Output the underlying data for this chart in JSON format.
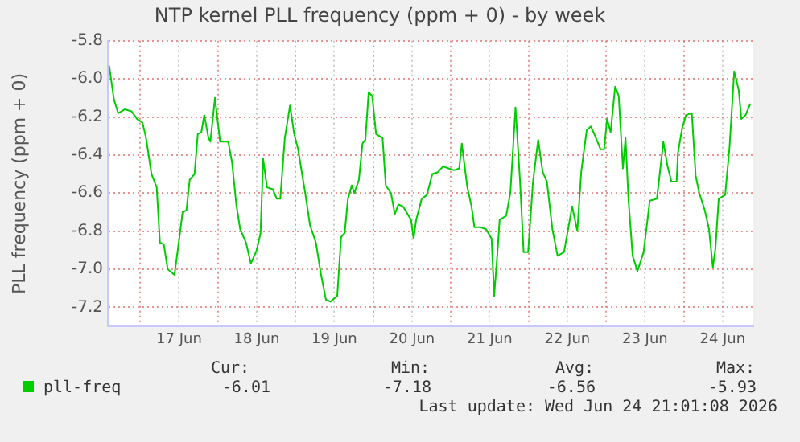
{
  "chart_data": {
    "type": "line",
    "title": "NTP kernel PLL frequency (ppm + 0) - by week",
    "ylabel": "PLL frequency (ppm + 0)",
    "x": [
      "2026-06-16T14:24",
      "2026-06-16T15:54",
      "2026-06-16T17:12",
      "2026-06-16T19:12",
      "2026-06-16T21:18",
      "2026-06-16T23:00",
      "2026-06-17T00:42",
      "2026-06-17T01:48",
      "2026-06-17T03:30",
      "2026-06-17T05:06",
      "2026-06-17T06:06",
      "2026-06-17T07:18",
      "2026-06-17T08:30",
      "2026-06-17T10:36",
      "2026-06-17T12:18",
      "2026-06-17T13:06",
      "2026-06-17T14:18",
      "2026-06-17T15:18",
      "2026-06-17T16:48",
      "2026-06-17T17:48",
      "2026-06-17T18:54",
      "2026-06-17T19:48",
      "2026-06-17T21:06",
      "2026-06-17T21:42",
      "2026-06-17T23:06",
      "2026-06-18T00:42",
      "2026-06-18T03:12",
      "2026-06-18T04:24",
      "2026-06-18T05:42",
      "2026-06-18T06:54",
      "2026-06-18T08:42",
      "2026-06-18T10:12",
      "2026-06-18T12:00",
      "2026-06-18T13:12",
      "2026-06-18T14:00",
      "2026-06-18T15:12",
      "2026-06-18T17:00",
      "2026-06-18T18:12",
      "2026-06-18T19:18",
      "2026-06-18T20:42",
      "2026-06-18T22:18",
      "2026-06-18T23:36",
      "2026-06-19T00:48",
      "2026-06-19T03:00",
      "2026-06-19T04:30",
      "2026-06-19T06:18",
      "2026-06-19T07:54",
      "2026-06-19T09:24",
      "2026-06-19T10:48",
      "2026-06-19T12:54",
      "2026-06-19T14:06",
      "2026-06-19T15:12",
      "2026-06-19T16:12",
      "2026-06-19T17:24",
      "2026-06-19T18:12",
      "2026-06-19T19:36",
      "2026-06-19T20:42",
      "2026-06-19T21:36",
      "2026-06-19T22:36",
      "2026-06-19T23:42",
      "2026-06-20T00:54",
      "2026-06-20T02:54",
      "2026-06-20T03:54",
      "2026-06-20T05:30",
      "2026-06-20T06:42",
      "2026-06-20T07:48",
      "2026-06-20T09:12",
      "2026-06-20T11:42",
      "2026-06-20T12:30",
      "2026-06-20T13:18",
      "2026-06-20T15:00",
      "2026-06-20T16:36",
      "2026-06-20T18:18",
      "2026-06-20T20:00",
      "2026-06-20T21:36",
      "2026-06-20T23:18",
      "2026-06-21T01:00",
      "2026-06-21T02:36",
      "2026-06-21T03:24",
      "2026-06-21T05:06",
      "2026-06-21T06:24",
      "2026-06-21T07:18",
      "2026-06-21T09:12",
      "2026-06-21T10:54",
      "2026-06-21T12:36",
      "2026-06-21T13:24",
      "2026-06-21T14:18",
      "2026-06-21T15:06",
      "2026-06-21T17:06",
      "2026-06-21T18:24",
      "2026-06-21T20:00",
      "2026-06-21T21:24",
      "2026-06-21T22:30",
      "2026-06-21T23:54",
      "2026-06-22T01:24",
      "2026-06-22T03:00",
      "2026-06-22T04:24",
      "2026-06-22T05:42",
      "2026-06-22T07:24",
      "2026-06-22T09:00",
      "2026-06-22T11:00",
      "2026-06-22T13:30",
      "2026-06-22T15:06",
      "2026-06-22T16:18",
      "2026-06-22T18:00",
      "2026-06-22T19:18",
      "2026-06-22T20:36",
      "2026-06-22T22:18",
      "2026-06-22T23:24",
      "2026-06-23T00:18",
      "2026-06-23T01:24",
      "2026-06-23T02:48",
      "2026-06-23T03:54",
      "2026-06-23T05:12",
      "2026-06-23T06:00",
      "2026-06-23T06:54",
      "2026-06-23T08:12",
      "2026-06-23T09:42",
      "2026-06-23T11:36",
      "2026-06-23T13:30",
      "2026-06-23T15:42",
      "2026-06-23T17:42",
      "2026-06-23T19:00",
      "2026-06-23T20:12",
      "2026-06-23T21:48",
      "2026-06-23T22:12",
      "2026-06-23T23:30",
      "2026-06-24T00:42",
      "2026-06-24T02:30",
      "2026-06-24T03:42",
      "2026-06-24T04:48",
      "2026-06-24T06:30",
      "2026-06-24T07:48",
      "2026-06-24T09:00",
      "2026-06-24T09:48",
      "2026-06-24T10:48",
      "2026-06-24T12:48",
      "2026-06-24T14:06",
      "2026-06-24T15:36",
      "2026-06-24T17:00",
      "2026-06-24T17:48",
      "2026-06-24T19:06",
      "2026-06-24T20:36"
    ],
    "series": [
      {
        "name": "pll-freq",
        "color": "#00cc00",
        "values": [
          -5.93,
          -6.11,
          -6.18,
          -6.16,
          -6.17,
          -6.21,
          -6.23,
          -6.31,
          -6.5,
          -6.57,
          -6.86,
          -6.87,
          -7.0,
          -7.03,
          -6.81,
          -6.7,
          -6.69,
          -6.53,
          -6.5,
          -6.29,
          -6.28,
          -6.19,
          -6.31,
          -6.33,
          -6.1,
          -6.33,
          -6.33,
          -6.44,
          -6.66,
          -6.79,
          -6.86,
          -6.97,
          -6.9,
          -6.81,
          -6.42,
          -6.57,
          -6.58,
          -6.63,
          -6.63,
          -6.31,
          -6.14,
          -6.29,
          -6.37,
          -6.6,
          -6.77,
          -6.86,
          -7.03,
          -7.16,
          -7.17,
          -7.14,
          -6.83,
          -6.81,
          -6.63,
          -6.56,
          -6.6,
          -6.53,
          -6.34,
          -6.32,
          -6.07,
          -6.09,
          -6.29,
          -6.31,
          -6.56,
          -6.6,
          -6.71,
          -6.66,
          -6.67,
          -6.74,
          -6.84,
          -6.74,
          -6.63,
          -6.61,
          -6.5,
          -6.49,
          -6.46,
          -6.47,
          -6.48,
          -6.47,
          -6.34,
          -6.57,
          -6.67,
          -6.78,
          -6.78,
          -6.79,
          -6.84,
          -7.14,
          -6.94,
          -6.74,
          -6.72,
          -6.6,
          -6.15,
          -6.54,
          -6.91,
          -6.91,
          -6.54,
          -6.32,
          -6.49,
          -6.54,
          -6.79,
          -6.93,
          -6.91,
          -6.67,
          -6.8,
          -6.49,
          -6.27,
          -6.25,
          -6.3,
          -6.37,
          -6.37,
          -6.21,
          -6.28,
          -6.04,
          -6.09,
          -6.47,
          -6.31,
          -6.63,
          -6.93,
          -7.01,
          -6.91,
          -6.64,
          -6.63,
          -6.33,
          -6.46,
          -6.54,
          -6.54,
          -6.39,
          -6.26,
          -6.19,
          -6.18,
          -6.51,
          -6.6,
          -6.69,
          -6.79,
          -6.99,
          -6.89,
          -6.63,
          -6.61,
          -6.37,
          -5.96,
          -6.06,
          -6.21,
          -6.19,
          -6.13
        ]
      }
    ],
    "xlim": [
      "2026-06-16T14:00",
      "2026-06-24T21:30"
    ],
    "xticks": [
      {
        "value": "2026-06-17T00:00",
        "label": null
      },
      {
        "value": "2026-06-17T12:00",
        "label": "17 Jun"
      },
      {
        "value": "2026-06-18T00:00",
        "label": null
      },
      {
        "value": "2026-06-18T12:00",
        "label": "18 Jun"
      },
      {
        "value": "2026-06-19T00:00",
        "label": null
      },
      {
        "value": "2026-06-19T12:00",
        "label": "19 Jun"
      },
      {
        "value": "2026-06-20T00:00",
        "label": null
      },
      {
        "value": "2026-06-20T12:00",
        "label": "20 Jun"
      },
      {
        "value": "2026-06-21T00:00",
        "label": null
      },
      {
        "value": "2026-06-21T12:00",
        "label": "21 Jun"
      },
      {
        "value": "2026-06-22T00:00",
        "label": null
      },
      {
        "value": "2026-06-22T12:00",
        "label": "22 Jun"
      },
      {
        "value": "2026-06-23T00:00",
        "label": null
      },
      {
        "value": "2026-06-23T12:00",
        "label": "23 Jun"
      },
      {
        "value": "2026-06-24T00:00",
        "label": null
      },
      {
        "value": "2026-06-24T12:00",
        "label": "24 Jun"
      }
    ],
    "ylim": [
      -7.3,
      -5.8
    ],
    "yticks": [
      {
        "value": -7.2,
        "label": "-7.2"
      },
      {
        "value": -7.0,
        "label": "-7.0"
      },
      {
        "value": -6.8,
        "label": "-6.8"
      },
      {
        "value": -6.6,
        "label": "-6.6"
      },
      {
        "value": -6.4,
        "label": "-6.4"
      },
      {
        "value": -6.2,
        "label": "-6.2"
      },
      {
        "value": -6.0,
        "label": "-6.0"
      },
      {
        "value": -5.8,
        "label": "-5.8"
      }
    ],
    "grid": true,
    "legend": "bottom",
    "marker": "none",
    "line_style": "solid",
    "annotations": [
      "Cur:",
      "Min:",
      "Avg:",
      "Max:",
      "-6.01",
      "-7.18",
      "-6.56",
      "-5.93",
      "Last update: Wed Jun 24 21:01:08 2026"
    ]
  }
}
